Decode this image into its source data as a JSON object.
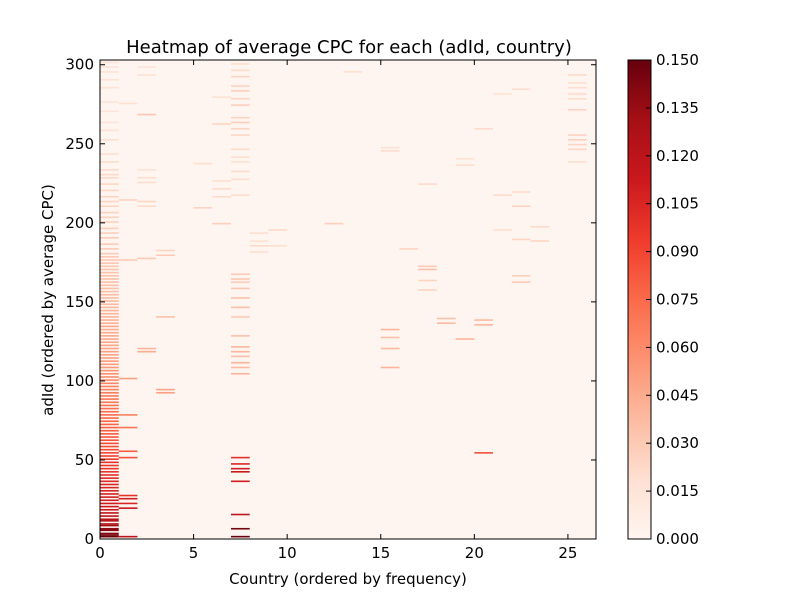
{
  "chart_data": {
    "type": "heatmap",
    "title": "Heatmap of average CPC for each (adId, country)",
    "xlabel": "Country (ordered by frequency)",
    "ylabel": "adId (ordered by average CPC)",
    "xlim": [
      0,
      26.5
    ],
    "ylim": [
      0,
      303
    ],
    "x_ticks": [
      0,
      5,
      10,
      15,
      20,
      25
    ],
    "y_ticks": [
      0,
      50,
      100,
      150,
      200,
      250,
      300
    ],
    "colorbar": {
      "min": 0.0,
      "max": 0.15,
      "ticks": [
        "0.000",
        "0.015",
        "0.030",
        "0.045",
        "0.060",
        "0.075",
        "0.090",
        "0.105",
        "0.120",
        "0.135",
        "0.150"
      ],
      "colormap": [
        "#fff5f0",
        "#fee0d2",
        "#fcbba1",
        "#fc9272",
        "#fb6a4a",
        "#ef3b2c",
        "#cb181d",
        "#a50f15",
        "#67000d"
      ]
    },
    "background_value": 0.0,
    "country_columns": [
      {
        "country": 0,
        "cells": [
          [
            1,
            0.15
          ],
          [
            2,
            0.145
          ],
          [
            3,
            0.142
          ],
          [
            5,
            0.14
          ],
          [
            6,
            0.138
          ],
          [
            8,
            0.132
          ],
          [
            9,
            0.128
          ],
          [
            11,
            0.125
          ],
          [
            12,
            0.122
          ],
          [
            14,
            0.12
          ],
          [
            16,
            0.118
          ],
          [
            18,
            0.115
          ],
          [
            20,
            0.113
          ],
          [
            22,
            0.111
          ],
          [
            24,
            0.11
          ],
          [
            26,
            0.109
          ],
          [
            28,
            0.108
          ],
          [
            30,
            0.107
          ],
          [
            32,
            0.106
          ],
          [
            34,
            0.105
          ],
          [
            36,
            0.104
          ],
          [
            38,
            0.103
          ],
          [
            40,
            0.1
          ],
          [
            42,
            0.098
          ],
          [
            44,
            0.097
          ],
          [
            46,
            0.096
          ],
          [
            48,
            0.1
          ],
          [
            50,
            0.095
          ],
          [
            52,
            0.092
          ],
          [
            54,
            0.09
          ],
          [
            56,
            0.088
          ],
          [
            58,
            0.087
          ],
          [
            60,
            0.086
          ],
          [
            62,
            0.085
          ],
          [
            64,
            0.083
          ],
          [
            66,
            0.082
          ],
          [
            68,
            0.08
          ],
          [
            70,
            0.079
          ],
          [
            72,
            0.078
          ],
          [
            74,
            0.077
          ],
          [
            76,
            0.076
          ],
          [
            78,
            0.075
          ],
          [
            80,
            0.074
          ],
          [
            82,
            0.073
          ],
          [
            84,
            0.072
          ],
          [
            86,
            0.07
          ],
          [
            88,
            0.069
          ],
          [
            90,
            0.068
          ],
          [
            92,
            0.066
          ],
          [
            94,
            0.065
          ],
          [
            96,
            0.064
          ],
          [
            98,
            0.062
          ],
          [
            100,
            0.06
          ],
          [
            102,
            0.058
          ],
          [
            104,
            0.057
          ],
          [
            106,
            0.055
          ],
          [
            108,
            0.054
          ],
          [
            110,
            0.052
          ],
          [
            112,
            0.051
          ],
          [
            114,
            0.05
          ],
          [
            116,
            0.049
          ],
          [
            118,
            0.05
          ],
          [
            120,
            0.048
          ],
          [
            122,
            0.047
          ],
          [
            124,
            0.046
          ],
          [
            126,
            0.045
          ],
          [
            128,
            0.046
          ],
          [
            130,
            0.045
          ],
          [
            132,
            0.044
          ],
          [
            134,
            0.048
          ],
          [
            136,
            0.043
          ],
          [
            138,
            0.042
          ],
          [
            140,
            0.041
          ],
          [
            142,
            0.04
          ],
          [
            144,
            0.04
          ],
          [
            146,
            0.039
          ],
          [
            148,
            0.038
          ],
          [
            150,
            0.038
          ],
          [
            152,
            0.037
          ],
          [
            154,
            0.037
          ],
          [
            156,
            0.036
          ],
          [
            158,
            0.036
          ],
          [
            160,
            0.035
          ],
          [
            162,
            0.035
          ],
          [
            164,
            0.034
          ],
          [
            166,
            0.034
          ],
          [
            168,
            0.033
          ],
          [
            170,
            0.033
          ],
          [
            172,
            0.032
          ],
          [
            174,
            0.032
          ],
          [
            176,
            0.031
          ],
          [
            178,
            0.031
          ],
          [
            180,
            0.03
          ],
          [
            183,
            0.03
          ],
          [
            186,
            0.029
          ],
          [
            190,
            0.029
          ],
          [
            193,
            0.028
          ],
          [
            196,
            0.028
          ],
          [
            200,
            0.027
          ],
          [
            203,
            0.027
          ],
          [
            206,
            0.026
          ],
          [
            210,
            0.026
          ],
          [
            213,
            0.025
          ],
          [
            216,
            0.025
          ],
          [
            220,
            0.024
          ],
          [
            224,
            0.024
          ],
          [
            228,
            0.023
          ],
          [
            230,
            0.023
          ],
          [
            233,
            0.022
          ],
          [
            238,
            0.021
          ],
          [
            243,
            0.02
          ],
          [
            252,
            0.02
          ],
          [
            258,
            0.018
          ],
          [
            263,
            0.016
          ],
          [
            270,
            0.016
          ],
          [
            276,
            0.015
          ],
          [
            285,
            0.018
          ],
          [
            290,
            0.018
          ],
          [
            295,
            0.017
          ],
          [
            298,
            0.016
          ],
          [
            301,
            0.016
          ]
        ]
      },
      {
        "country": 1,
        "cells": [
          [
            1,
            0.12
          ],
          [
            19,
            0.115
          ],
          [
            22,
            0.105
          ],
          [
            25,
            0.11
          ],
          [
            27,
            0.1
          ],
          [
            51,
            0.085
          ],
          [
            55,
            0.08
          ],
          [
            70,
            0.07
          ],
          [
            78,
            0.065
          ],
          [
            101,
            0.05
          ],
          [
            176,
            0.03
          ],
          [
            214,
            0.025
          ],
          [
            275,
            0.02
          ]
        ]
      },
      {
        "country": 2,
        "cells": [
          [
            118,
            0.045
          ],
          [
            120,
            0.04
          ],
          [
            177,
            0.03
          ],
          [
            210,
            0.022
          ],
          [
            213,
            0.024
          ],
          [
            225,
            0.02
          ],
          [
            228,
            0.02
          ],
          [
            233,
            0.018
          ],
          [
            268,
            0.032
          ],
          [
            293,
            0.018
          ],
          [
            298,
            0.016
          ]
        ]
      },
      {
        "country": 3,
        "cells": [
          [
            92,
            0.05
          ],
          [
            94,
            0.048
          ],
          [
            140,
            0.035
          ],
          [
            179,
            0.03
          ],
          [
            182,
            0.025
          ]
        ]
      },
      {
        "country": 5,
        "cells": [
          [
            209,
            0.025
          ],
          [
            237,
            0.02
          ]
        ]
      },
      {
        "country": 6,
        "cells": [
          [
            199,
            0.028
          ],
          [
            216,
            0.022
          ],
          [
            221,
            0.022
          ],
          [
            226,
            0.02
          ],
          [
            262,
            0.025
          ],
          [
            279,
            0.018
          ]
        ]
      },
      {
        "country": 7,
        "cells": [
          [
            1,
            0.15
          ],
          [
            6,
            0.145
          ],
          [
            15,
            0.12
          ],
          [
            36,
            0.11
          ],
          [
            42,
            0.115
          ],
          [
            44,
            0.11
          ],
          [
            47,
            0.105
          ],
          [
            51,
            0.1
          ],
          [
            104,
            0.04
          ],
          [
            108,
            0.038
          ],
          [
            111,
            0.04
          ],
          [
            115,
            0.035
          ],
          [
            118,
            0.04
          ],
          [
            121,
            0.04
          ],
          [
            128,
            0.035
          ],
          [
            140,
            0.03
          ],
          [
            146,
            0.035
          ],
          [
            152,
            0.035
          ],
          [
            158,
            0.032
          ],
          [
            162,
            0.03
          ],
          [
            164,
            0.032
          ],
          [
            167,
            0.03
          ],
          [
            217,
            0.02
          ],
          [
            227,
            0.02
          ],
          [
            232,
            0.022
          ],
          [
            238,
            0.018
          ],
          [
            241,
            0.02
          ],
          [
            246,
            0.022
          ],
          [
            255,
            0.024
          ],
          [
            259,
            0.025
          ],
          [
            263,
            0.028
          ],
          [
            266,
            0.026
          ],
          [
            274,
            0.028
          ],
          [
            278,
            0.025
          ],
          [
            283,
            0.028
          ],
          [
            286,
            0.026
          ],
          [
            292,
            0.024
          ],
          [
            296,
            0.022
          ],
          [
            300,
            0.02
          ]
        ]
      },
      {
        "country": 8,
        "cells": [
          [
            181,
            0.02
          ],
          [
            185,
            0.022
          ],
          [
            188,
            0.018
          ],
          [
            193,
            0.02
          ]
        ]
      },
      {
        "country": 9,
        "cells": [
          [
            185,
            0.02
          ],
          [
            195,
            0.022
          ]
        ]
      },
      {
        "country": 12,
        "cells": [
          [
            199,
            0.028
          ]
        ]
      },
      {
        "country": 13,
        "cells": [
          [
            295,
            0.02
          ]
        ]
      },
      {
        "country": 15,
        "cells": [
          [
            108,
            0.04
          ],
          [
            120,
            0.038
          ],
          [
            127,
            0.035
          ],
          [
            132,
            0.04
          ],
          [
            245,
            0.02
          ],
          [
            247,
            0.018
          ]
        ]
      },
      {
        "country": 16,
        "cells": [
          [
            183,
            0.025
          ]
        ]
      },
      {
        "country": 17,
        "cells": [
          [
            157,
            0.025
          ],
          [
            163,
            0.025
          ],
          [
            170,
            0.035
          ],
          [
            172,
            0.03
          ],
          [
            224,
            0.022
          ]
        ]
      },
      {
        "country": 18,
        "cells": [
          [
            136,
            0.038
          ],
          [
            139,
            0.035
          ]
        ]
      },
      {
        "country": 19,
        "cells": [
          [
            126,
            0.04
          ],
          [
            236,
            0.02
          ],
          [
            240,
            0.018
          ]
        ]
      },
      {
        "country": 20,
        "cells": [
          [
            54,
            0.085
          ],
          [
            135,
            0.04
          ],
          [
            138,
            0.038
          ],
          [
            259,
            0.022
          ]
        ]
      },
      {
        "country": 21,
        "cells": [
          [
            195,
            0.02
          ],
          [
            217,
            0.022
          ],
          [
            281,
            0.018
          ]
        ]
      },
      {
        "country": 22,
        "cells": [
          [
            162,
            0.03
          ],
          [
            166,
            0.028
          ],
          [
            189,
            0.025
          ],
          [
            210,
            0.025
          ],
          [
            219,
            0.022
          ],
          [
            284,
            0.02
          ]
        ]
      },
      {
        "country": 23,
        "cells": [
          [
            188,
            0.025
          ],
          [
            197,
            0.022
          ]
        ]
      },
      {
        "country": 25,
        "cells": [
          [
            238,
            0.02
          ],
          [
            246,
            0.024
          ],
          [
            249,
            0.025
          ],
          [
            252,
            0.028
          ],
          [
            255,
            0.026
          ],
          [
            271,
            0.025
          ],
          [
            278,
            0.022
          ],
          [
            281,
            0.022
          ],
          [
            285,
            0.02
          ],
          [
            288,
            0.02
          ],
          [
            293,
            0.022
          ]
        ]
      }
    ]
  }
}
